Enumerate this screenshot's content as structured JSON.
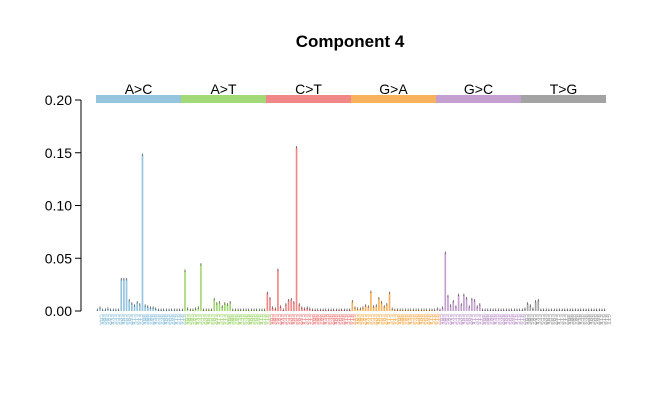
{
  "chart_data": {
    "type": "bar",
    "title": "Component 4",
    "xlabel": "",
    "ylabel": "",
    "ylim": [
      0,
      0.2
    ],
    "yticks": [
      "0.00",
      "0.05",
      "0.10",
      "0.15",
      "0.20"
    ],
    "grid": false,
    "legend": "none",
    "groups": [
      {
        "name": "A>C",
        "color": "#95c4de",
        "categories": [
          "CAA",
          "CAC",
          "CAG",
          "CAT",
          "CCA",
          "CCC",
          "CCG",
          "CCT",
          "CGA",
          "CGC",
          "CGG",
          "CGT",
          "CTA",
          "CTC",
          "CTG",
          "CTT",
          "GAA",
          "GAC",
          "GAG",
          "GAT",
          "GCA",
          "GCC",
          "GCG",
          "GCT",
          "GGA",
          "GGC",
          "GGG",
          "GGT",
          "GTA",
          "GTC",
          "GTG",
          "GTT"
        ],
        "values": [
          0.001,
          0.003,
          0.001,
          0.001,
          0.002,
          0.001,
          0.001,
          0.001,
          0.001,
          0.03,
          0.03,
          0.03,
          0.01,
          0.007,
          0.005,
          0.008,
          0.006,
          0.148,
          0.005,
          0.004,
          0.003,
          0.003,
          0.002,
          0.001,
          0.001,
          0.001,
          0.001,
          0.001,
          0.001,
          0.001,
          0.001,
          0.001
        ]
      },
      {
        "name": "A>T",
        "color": "#a3d876",
        "categories": [
          "CAA",
          "CAC",
          "CAG",
          "CAT",
          "CCA",
          "CCC",
          "CCG",
          "CCT",
          "CGA",
          "CGC",
          "CGG",
          "CGT",
          "CTA",
          "CTC",
          "CTG",
          "CTT",
          "GAA",
          "GAC",
          "GAG",
          "GAT",
          "GCA",
          "GCC",
          "GCG",
          "GCT",
          "GGA",
          "GGC",
          "GGG",
          "GGT",
          "GTA",
          "GTC",
          "GTG",
          "GTT"
        ],
        "values": [
          0.001,
          0.038,
          0.002,
          0.001,
          0.001,
          0.002,
          0.003,
          0.044,
          0.001,
          0.001,
          0.001,
          0.001,
          0.011,
          0.007,
          0.008,
          0.004,
          0.007,
          0.006,
          0.008,
          0.001,
          0.001,
          0.001,
          0.001,
          0.001,
          0.001,
          0.001,
          0.001,
          0.001,
          0.001,
          0.001,
          0.001,
          0.001
        ]
      },
      {
        "name": "C>T",
        "color": "#f08888",
        "categories": [
          "CAA",
          "CAC",
          "CAG",
          "CAT",
          "CCA",
          "CCC",
          "CCG",
          "CCT",
          "CGA",
          "CGC",
          "CGG",
          "CGT",
          "CTA",
          "CTC",
          "CTG",
          "CTT",
          "GAA",
          "GAC",
          "GAG",
          "GAT",
          "GCA",
          "GCC",
          "GCG",
          "GCT",
          "GGA",
          "GGC",
          "GGG",
          "GGT",
          "GTA",
          "GTC",
          "GTG",
          "GTT"
        ],
        "values": [
          0.017,
          0.012,
          0.003,
          0.002,
          0.039,
          0.004,
          0.001,
          0.006,
          0.01,
          0.011,
          0.008,
          0.155,
          0.006,
          0.003,
          0.002,
          0.003,
          0.002,
          0.001,
          0.001,
          0.001,
          0.001,
          0.001,
          0.001,
          0.001,
          0.001,
          0.001,
          0.001,
          0.001,
          0.001,
          0.001,
          0.001,
          0.001
        ]
      },
      {
        "name": "G>A",
        "color": "#f8b25e",
        "categories": [
          "CAA",
          "CAC",
          "CAG",
          "CAT",
          "CCA",
          "CCC",
          "CCG",
          "CCT",
          "CGA",
          "CGC",
          "CGG",
          "CGT",
          "CTA",
          "CTC",
          "CTG",
          "CTT",
          "GAA",
          "GAC",
          "GAG",
          "GAT",
          "GCA",
          "GCC",
          "GCG",
          "GCT",
          "GGA",
          "GGC",
          "GGG",
          "GGT",
          "GTA",
          "GTC",
          "GTG",
          "GTT"
        ],
        "values": [
          0.009,
          0.003,
          0.002,
          0.002,
          0.003,
          0.005,
          0.004,
          0.018,
          0.004,
          0.005,
          0.012,
          0.008,
          0.004,
          0.006,
          0.017,
          0.002,
          0.001,
          0.001,
          0.001,
          0.001,
          0.001,
          0.001,
          0.001,
          0.001,
          0.001,
          0.001,
          0.001,
          0.001,
          0.001,
          0.001,
          0.001,
          0.001
        ]
      },
      {
        "name": "G>C",
        "color": "#c3a0cf",
        "categories": [
          "CAA",
          "CAC",
          "CAG",
          "CAT",
          "CCA",
          "CCC",
          "CCG",
          "CCT",
          "CGA",
          "CGC",
          "CGG",
          "CGT",
          "CTA",
          "CTC",
          "CTG",
          "CTT",
          "GAA",
          "GAC",
          "GAG",
          "GAT",
          "GCA",
          "GCC",
          "GCG",
          "GCT",
          "GGA",
          "GGC",
          "GGG",
          "GGT",
          "GTA",
          "GTC",
          "GTG",
          "GTT"
        ],
        "values": [
          0.002,
          0.001,
          0.003,
          0.055,
          0.014,
          0.005,
          0.009,
          0.004,
          0.015,
          0.006,
          0.015,
          0.012,
          0.004,
          0.011,
          0.01,
          0.004,
          0.006,
          0.001,
          0.001,
          0.001,
          0.001,
          0.001,
          0.001,
          0.001,
          0.001,
          0.001,
          0.001,
          0.001,
          0.001,
          0.001,
          0.001,
          0.001
        ]
      },
      {
        "name": "T>G",
        "color": "#a3a3a3",
        "categories": [
          "CAA",
          "CAC",
          "CAG",
          "CAT",
          "CCA",
          "CCC",
          "CCG",
          "CCT",
          "CGA",
          "CGC",
          "CGG",
          "CGT",
          "CTA",
          "CTC",
          "CTG",
          "CTT",
          "GAA",
          "GAC",
          "GAG",
          "GAT",
          "GCA",
          "GCC",
          "GCG",
          "GCT",
          "GGA",
          "GGC",
          "GGG",
          "GGT",
          "GTA",
          "GTC",
          "GTG",
          "GTT"
        ],
        "values": [
          0.001,
          0.002,
          0.007,
          0.005,
          0.002,
          0.009,
          0.01,
          0.001,
          0.001,
          0.001,
          0.001,
          0.001,
          0.001,
          0.001,
          0.001,
          0.001,
          0.001,
          0.001,
          0.001,
          0.001,
          0.001,
          0.001,
          0.001,
          0.001,
          0.001,
          0.001,
          0.001,
          0.001,
          0.001,
          0.001,
          0.001,
          0.001
        ]
      }
    ]
  }
}
